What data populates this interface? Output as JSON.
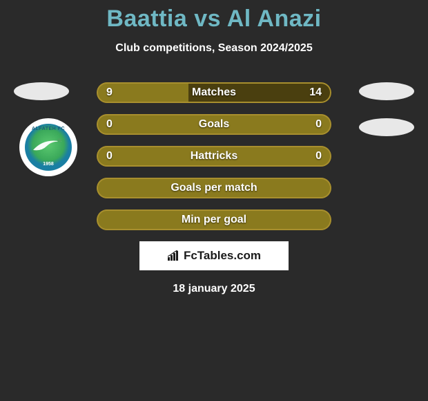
{
  "title_color": "#6fb8c4",
  "header": {
    "player1": "Baattia",
    "vs": "vs",
    "player2": "Al Anazi",
    "subtitle": "Club competitions, Season 2024/2025"
  },
  "badge": {
    "name": "ALFATEH FC",
    "year": "1958"
  },
  "colors": {
    "bar_border": "#a88f2e",
    "fill_olive": "#8a7a1e",
    "fill_dark": "#4a3f0f",
    "ellipse": "#e8e8e8",
    "background": "#2a2a2a"
  },
  "bars": [
    {
      "label": "Matches",
      "left_val": "9",
      "right_val": "14",
      "left_pct": 39.1,
      "right_pct": 60.9,
      "left_fill": "#8a7a1e",
      "right_fill": "#4a3f0f",
      "has_values": true
    },
    {
      "label": "Goals",
      "left_val": "0",
      "right_val": "0",
      "left_pct": 50,
      "right_pct": 50,
      "left_fill": "#8a7a1e",
      "right_fill": "#8a7a1e",
      "has_values": true
    },
    {
      "label": "Hattricks",
      "left_val": "0",
      "right_val": "0",
      "left_pct": 50,
      "right_pct": 50,
      "left_fill": "#8a7a1e",
      "right_fill": "#8a7a1e",
      "has_values": true
    },
    {
      "label": "Goals per match",
      "left_val": "",
      "right_val": "",
      "left_pct": 50,
      "right_pct": 50,
      "left_fill": "#8a7a1e",
      "right_fill": "#8a7a1e",
      "has_values": false
    },
    {
      "label": "Min per goal",
      "left_val": "",
      "right_val": "",
      "left_pct": 50,
      "right_pct": 50,
      "left_fill": "#8a7a1e",
      "right_fill": "#8a7a1e",
      "has_values": false
    }
  ],
  "watermark": {
    "text": "FcTables.com"
  },
  "date": "18 january 2025"
}
